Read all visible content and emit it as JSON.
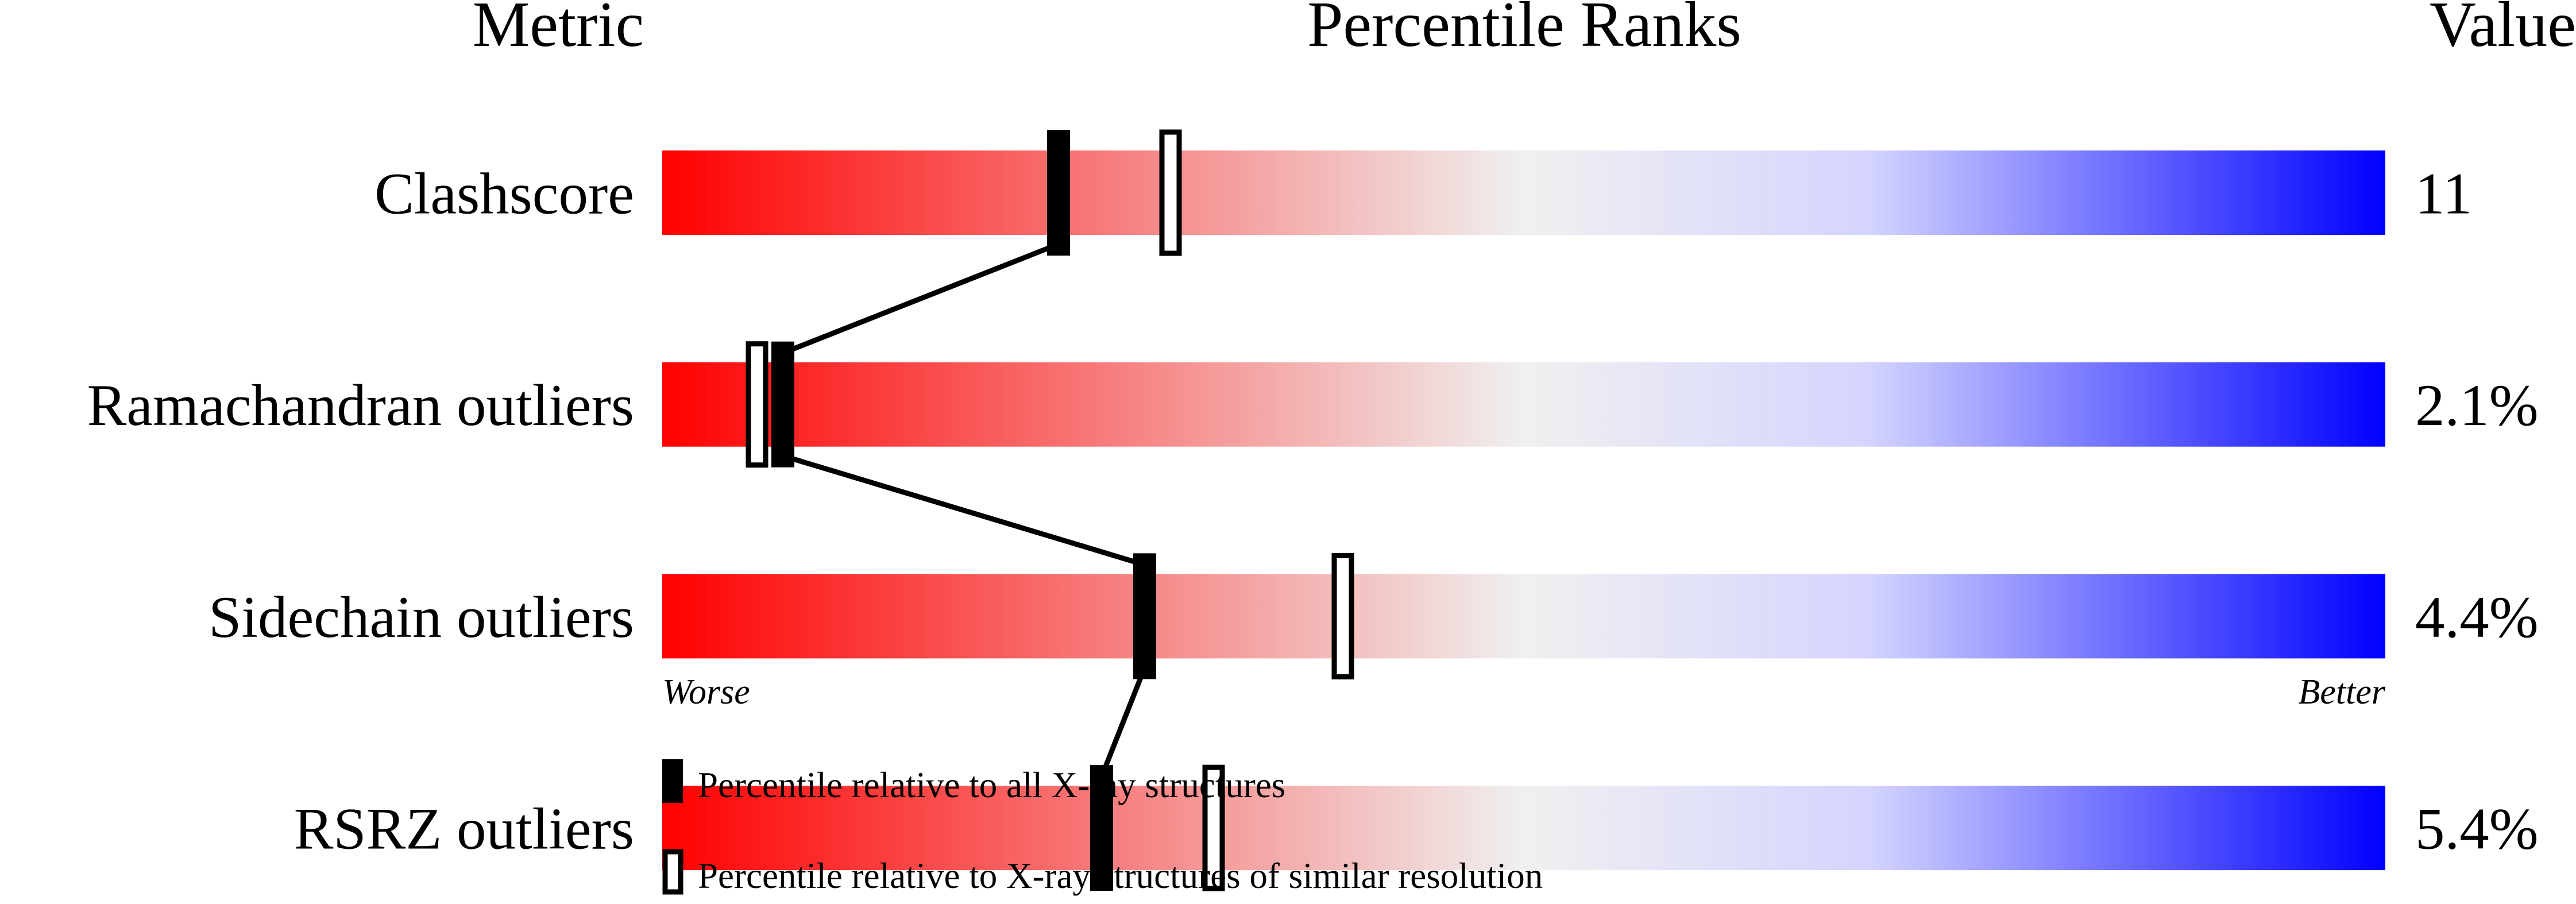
{
  "chart_data": {
    "type": "percentile-ranks",
    "headers": {
      "metric": "Metric",
      "ranks": "Percentile Ranks",
      "value": "Value"
    },
    "xlim": [
      0,
      100
    ],
    "axis_labels": {
      "left": "Worse",
      "right": "Better"
    },
    "gradient_colors": [
      "#ff0000",
      "#f0f0f0",
      "#d0d0ff",
      "#0000ff"
    ],
    "rows": [
      {
        "metric": "Clashscore",
        "value": "11",
        "percentile_all": 23,
        "percentile_similar": 29.5
      },
      {
        "metric": "Ramachandran outliers",
        "value": "2.1%",
        "percentile_all": 7,
        "percentile_similar": 5.5
      },
      {
        "metric": "Sidechain outliers",
        "value": "4.4%",
        "percentile_all": 28,
        "percentile_similar": 39.5
      },
      {
        "metric": "RSRZ outliers",
        "value": "5.4%",
        "percentile_all": 25.5,
        "percentile_similar": 32
      }
    ],
    "legend": [
      {
        "marker": "filled",
        "label": "Percentile relative to all X-ray structures"
      },
      {
        "marker": "open",
        "label": "Percentile relative to X-ray structures of similar resolution"
      }
    ]
  }
}
